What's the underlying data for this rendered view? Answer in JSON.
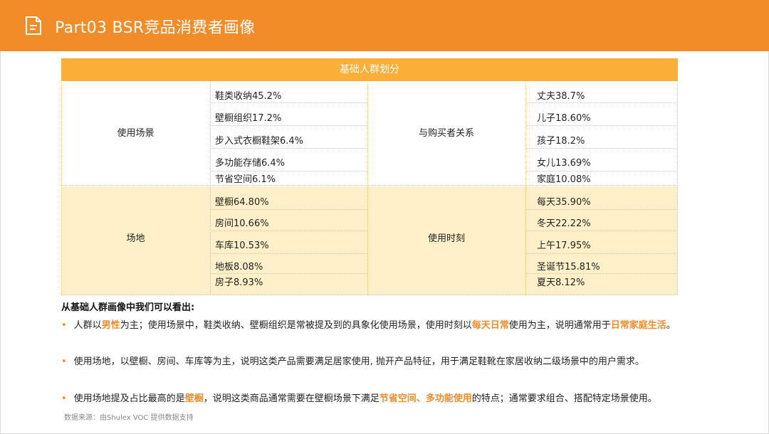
{
  "header": {
    "title": "Part03 BSR竞品消费者画像"
  },
  "table": {
    "heading": "基础人群划分",
    "upper": {
      "left_category": "使用场景",
      "left_items": [
        "鞋类收纳45.2%",
        "壁橱组织17.2%",
        "步入式衣橱鞋架6.4%",
        "多功能存储6.4%",
        "节省空间6.1%"
      ],
      "right_category": "与购买者关系",
      "right_items": [
        "丈夫38.7%",
        "儿子18.60%",
        "孩子18.2%",
        "女儿13.69%",
        "家庭10.08%"
      ]
    },
    "lower": {
      "left_category": "场地",
      "left_items": [
        "壁橱64.80%",
        "房间10.66%",
        "车库10.53%",
        "地板8.08%",
        "房子8.93%"
      ],
      "right_category": "使用时刻",
      "right_items": [
        "每天35.90%",
        "冬天22.22%",
        "上午17.95%",
        "圣诞节15.81%",
        "夏天8.12%"
      ]
    }
  },
  "summary": {
    "title": "从基础人群画像中我们可以看出:",
    "bullet1": {
      "a": "人群以",
      "b": "男性",
      "c": "为主；使用场景中，鞋类收纳、壁橱组织是常被提及到的具象化使用场景，使用时刻以",
      "d": "每天日常",
      "e": "使用为主，说明通常用于",
      "f": "日常家庭生活",
      "g": "。"
    },
    "bullet2": "使用场地，以壁橱、房间、车库等为主，说明这类产品需要满足居家使用, 抛开产品特征，用于满足鞋靴在家居收纳二级场景中的用户需求。",
    "bullet3": {
      "a": "使用场地提及占比最高的是",
      "b": "壁橱",
      "c": "，说明这类商品通常需要在壁橱场景下满足",
      "d": "节省空间、多功能使用",
      "e": "的特点；通常要求组合、搭配特定场景使用。"
    }
  },
  "source": "数据来源：由Shulex VOC 提供数据支持",
  "colors": {
    "accent": "#f28c28",
    "table_header": "#fbae38",
    "band": "#fff0c9"
  }
}
